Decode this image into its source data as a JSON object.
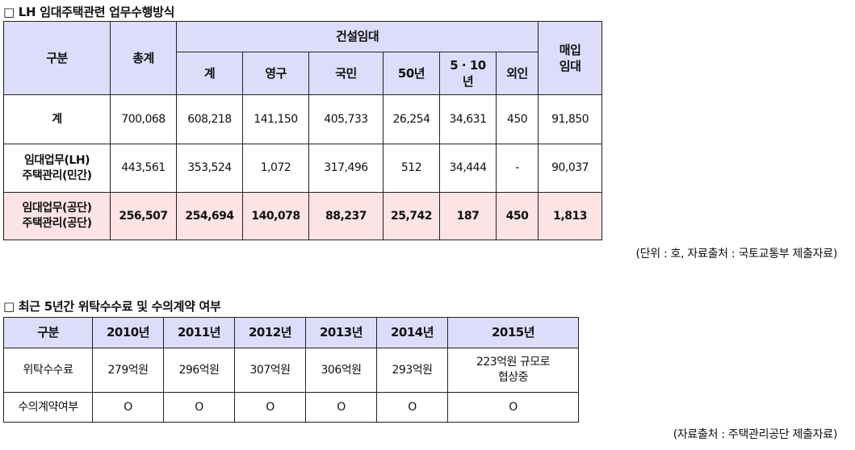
{
  "section1": {
    "title": "□ LH 임대주택관련 업무수행방식",
    "headers": {
      "category": "구분",
      "total": "총계",
      "construction": "건설임대",
      "purchase_line1": "매입",
      "purchase_line2": "임대",
      "sub": [
        "계",
        "영구",
        "국민",
        "50년",
        "5 · 10",
        "외인"
      ],
      "sub_5_10_line2": "년"
    },
    "rows": [
      {
        "label_line1": "계",
        "label_line2": "",
        "values": [
          "700,068",
          "608,218",
          "141,150",
          "405,733",
          "26,254",
          "34,631",
          "450",
          "91,850"
        ]
      },
      {
        "label_line1": "임대업무(LH)",
        "label_line2": "주택관리(민간)",
        "values": [
          "443,561",
          "353,524",
          "1,072",
          "317,496",
          "512",
          "34,444",
          "-",
          "90,037"
        ]
      },
      {
        "label_line1": "임대업무(공단)",
        "label_line2": "주택관리(공단)",
        "values": [
          "256,507",
          "254,694",
          "140,078",
          "88,237",
          "25,742",
          "187",
          "450",
          "1,813"
        ]
      }
    ],
    "note": "(단위 : 호, 자료출처 : 국토교통부 제출자료)"
  },
  "section2": {
    "title": "□ 최근 5년간 위탁수수료 및 수의계약 여부",
    "headers": [
      "구분",
      "2010년",
      "2011년",
      "2012년",
      "2013년",
      "2014년",
      "2015년"
    ],
    "rows": [
      {
        "label": "위탁수수료",
        "values": [
          "279억원",
          "296억원",
          "307억원",
          "306억원",
          "293억원"
        ],
        "last_line1": "223억원 규모로",
        "last_line2": "협상중"
      },
      {
        "label": "수의계약여부",
        "values": [
          "O",
          "O",
          "O",
          "O",
          "O"
        ],
        "last_line1": "O",
        "last_line2": ""
      }
    ],
    "note": "(자료출처 : 주택관리공단 제출자료)"
  }
}
